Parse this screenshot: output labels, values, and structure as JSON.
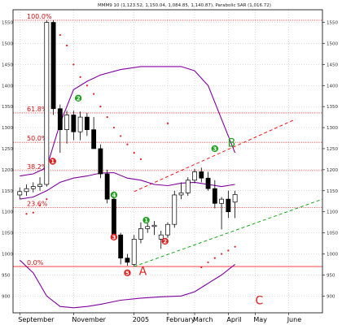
{
  "chart_data": {
    "type": "candlestick",
    "title": "MMM9 10 (1,123.52, 1,150.04, 1,084.85, 1,140.87), Parabolic SAR (1,016.72)",
    "x_tick_labels": [
      {
        "label": "September",
        "week": 1
      },
      {
        "label": "November",
        "week": 9
      },
      {
        "label": "2005",
        "week": 18
      },
      {
        "label": "February",
        "week": 23
      },
      {
        "label": "March",
        "week": 27
      },
      {
        "label": "April",
        "week": 32
      },
      {
        "label": "May",
        "week": 36
      },
      {
        "label": "June",
        "week": 41
      }
    ],
    "y_ticks": [
      900,
      950,
      1000,
      1050,
      1100,
      1150,
      1200,
      1250,
      1300,
      1350,
      1400,
      1450,
      1500,
      1550
    ],
    "ylim": [
      860,
      1580
    ],
    "xlim": [
      0,
      46
    ],
    "grid": true,
    "candles": [
      {
        "w": 1,
        "o": 1140,
        "h": 1158,
        "l": 1130,
        "c": 1148
      },
      {
        "w": 2,
        "o": 1148,
        "h": 1165,
        "l": 1138,
        "c": 1155
      },
      {
        "w": 3,
        "o": 1155,
        "h": 1170,
        "l": 1146,
        "c": 1160
      },
      {
        "w": 4,
        "o": 1160,
        "h": 1182,
        "l": 1150,
        "c": 1165
      },
      {
        "w": 5,
        "o": 1165,
        "h": 1555,
        "l": 1160,
        "c": 1550
      },
      {
        "w": 6,
        "o": 1550,
        "h": 1555,
        "l": 1330,
        "c": 1345
      },
      {
        "w": 7,
        "o": 1345,
        "h": 1355,
        "l": 1240,
        "c": 1295
      },
      {
        "w": 8,
        "o": 1295,
        "h": 1340,
        "l": 1262,
        "c": 1330
      },
      {
        "w": 9,
        "o": 1330,
        "h": 1340,
        "l": 1270,
        "c": 1290
      },
      {
        "w": 10,
        "o": 1290,
        "h": 1338,
        "l": 1270,
        "c": 1325
      },
      {
        "w": 11,
        "o": 1325,
        "h": 1335,
        "l": 1280,
        "c": 1295
      },
      {
        "w": 12,
        "o": 1295,
        "h": 1325,
        "l": 1250,
        "c": 1250
      },
      {
        "w": 13,
        "o": 1250,
        "h": 1260,
        "l": 1180,
        "c": 1190
      },
      {
        "w": 14,
        "o": 1190,
        "h": 1200,
        "l": 1120,
        "c": 1130
      },
      {
        "w": 15,
        "o": 1130,
        "h": 1135,
        "l": 1035,
        "c": 1045
      },
      {
        "w": 16,
        "o": 1045,
        "h": 1050,
        "l": 975,
        "c": 990
      },
      {
        "w": 17,
        "o": 990,
        "h": 1000,
        "l": 972,
        "c": 980
      },
      {
        "w": 18,
        "o": 975,
        "h": 1045,
        "l": 970,
        "c": 1035
      },
      {
        "w": 19,
        "o": 1035,
        "h": 1075,
        "l": 1025,
        "c": 1060
      },
      {
        "w": 20,
        "o": 1060,
        "h": 1075,
        "l": 1050,
        "c": 1065
      },
      {
        "w": 21,
        "o": 1065,
        "h": 1078,
        "l": 1045,
        "c": 1068
      },
      {
        "w": 22,
        "o": 1035,
        "h": 1055,
        "l": 1012,
        "c": 1045
      },
      {
        "w": 23,
        "o": 1045,
        "h": 1075,
        "l": 1038,
        "c": 1070
      },
      {
        "w": 24,
        "o": 1070,
        "h": 1150,
        "l": 1062,
        "c": 1140
      },
      {
        "w": 25,
        "o": 1140,
        "h": 1170,
        "l": 1130,
        "c": 1145
      },
      {
        "w": 26,
        "o": 1145,
        "h": 1182,
        "l": 1138,
        "c": 1175
      },
      {
        "w": 27,
        "o": 1175,
        "h": 1202,
        "l": 1168,
        "c": 1195
      },
      {
        "w": 28,
        "o": 1195,
        "h": 1205,
        "l": 1170,
        "c": 1180
      },
      {
        "w": 29,
        "o": 1180,
        "h": 1195,
        "l": 1150,
        "c": 1155
      },
      {
        "w": 30,
        "o": 1155,
        "h": 1175,
        "l": 1108,
        "c": 1120
      },
      {
        "w": 31,
        "o": 1120,
        "h": 1135,
        "l": 1058,
        "c": 1130
      },
      {
        "w": 32,
        "o": 1130,
        "h": 1150,
        "l": 1085,
        "c": 1100
      },
      {
        "w": 33,
        "o": 1123,
        "h": 1150,
        "l": 1085,
        "c": 1141
      }
    ],
    "fib_levels": [
      {
        "label": "100.0%",
        "value": 1555
      },
      {
        "label": "61.8%",
        "value": 1335
      },
      {
        "label": "50.0%",
        "value": 1265
      },
      {
        "label": "38.2%",
        "value": 1198
      },
      {
        "label": "23.6%",
        "value": 1110
      },
      {
        "label": "0.0%",
        "value": 970
      }
    ],
    "bands": {
      "upper": [
        [
          1,
          1185
        ],
        [
          3,
          1190
        ],
        [
          5,
          1205
        ],
        [
          7,
          1310
        ],
        [
          9,
          1390
        ],
        [
          11,
          1410
        ],
        [
          13,
          1425
        ],
        [
          16,
          1438
        ],
        [
          19,
          1445
        ],
        [
          22,
          1445
        ],
        [
          25,
          1445
        ],
        [
          27,
          1435
        ],
        [
          29,
          1400
        ],
        [
          31,
          1320
        ],
        [
          33,
          1240
        ]
      ],
      "middle": [
        [
          1,
          1130
        ],
        [
          3,
          1135
        ],
        [
          5,
          1150
        ],
        [
          7,
          1170
        ],
        [
          9,
          1180
        ],
        [
          11,
          1185
        ],
        [
          13,
          1192
        ],
        [
          15,
          1193
        ],
        [
          17,
          1180
        ],
        [
          19,
          1175
        ],
        [
          21,
          1165
        ],
        [
          23,
          1162
        ],
        [
          25,
          1168
        ],
        [
          27,
          1170
        ],
        [
          29,
          1165
        ],
        [
          31,
          1160
        ],
        [
          33,
          1165
        ]
      ],
      "lower": [
        [
          1,
          985
        ],
        [
          3,
          955
        ],
        [
          5,
          900
        ],
        [
          7,
          875
        ],
        [
          9,
          872
        ],
        [
          11,
          875
        ],
        [
          13,
          880
        ],
        [
          16,
          890
        ],
        [
          19,
          895
        ],
        [
          22,
          898
        ],
        [
          25,
          900
        ],
        [
          27,
          910
        ],
        [
          29,
          930
        ],
        [
          31,
          950
        ],
        [
          33,
          975
        ]
      ]
    },
    "sar": [
      [
        2,
        1095
      ],
      [
        3,
        1098
      ],
      [
        4,
        1115
      ],
      [
        5,
        1130
      ],
      [
        7,
        1520
      ],
      [
        8,
        1495
      ],
      [
        9,
        1450
      ],
      [
        10,
        1420
      ],
      [
        11,
        1400
      ],
      [
        12,
        1380
      ],
      [
        13,
        1350
      ],
      [
        14,
        1325
      ],
      [
        15,
        1300
      ],
      [
        16,
        1280
      ],
      [
        17,
        1260
      ],
      [
        18,
        1240
      ],
      [
        19,
        1225
      ],
      [
        23,
        1310
      ],
      [
        28,
        968
      ],
      [
        29,
        980
      ],
      [
        30,
        990
      ],
      [
        31,
        1000
      ],
      [
        32,
        1008
      ],
      [
        33,
        1017
      ]
    ],
    "trendlines": [
      {
        "color": "#ff0000",
        "style": "dashed",
        "from": [
          18,
          1148
        ],
        "to": [
          42,
          1320
        ]
      },
      {
        "color": "#00a000",
        "style": "dashed",
        "from": [
          18,
          970
        ],
        "to": [
          46,
          1130
        ]
      }
    ],
    "wave_labels": [
      {
        "text": "1",
        "color": "#e02020",
        "w": 5.9,
        "v": 1220
      },
      {
        "text": "2",
        "color": "#20a020",
        "w": 9.7,
        "v": 1370
      },
      {
        "text": "3",
        "color": "#e02020",
        "w": 15.0,
        "v": 1040
      },
      {
        "text": "4",
        "color": "#20a020",
        "w": 15.0,
        "v": 1140
      },
      {
        "text": "5",
        "color": "#e02020",
        "w": 17.0,
        "v": 955
      },
      {
        "text": "1",
        "color": "#20a020",
        "w": 19.8,
        "v": 1080
      },
      {
        "text": "2",
        "color": "#e02020",
        "w": 22.6,
        "v": 1030
      },
      {
        "text": "3",
        "color": "#20a020",
        "w": 30.0,
        "v": 1250
      }
    ],
    "wave_letters": [
      {
        "text": "A",
        "color": "#e02020",
        "w": 19.3,
        "v": 950
      },
      {
        "text": "B",
        "color": "#20a020",
        "w": 32.5,
        "v": 1255
      },
      {
        "text": "C",
        "color": "#e02020",
        "w": 36.6,
        "v": 880
      }
    ],
    "colors": {
      "grid": "#b8b8b8",
      "fib": "#ff3030",
      "band": "#8000a0",
      "sar": "#e02020",
      "candle_up": "#ffffff",
      "candle_down": "#000000",
      "outline": "#000000"
    }
  }
}
